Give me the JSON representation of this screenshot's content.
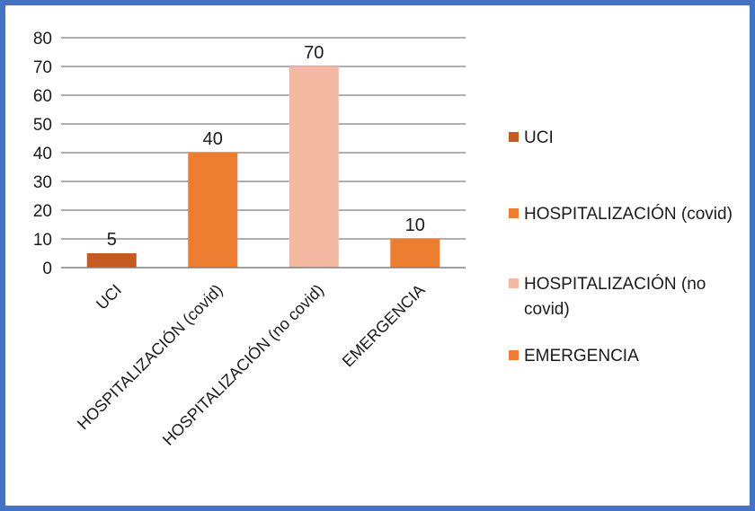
{
  "chart_data": {
    "type": "bar",
    "categories": [
      "UCI",
      "HOSPITALIZACIÓN (covid)",
      "HOSPITALIZACIÓN (no covid)",
      "EMERGENCIA"
    ],
    "values": [
      5,
      40,
      70,
      10
    ],
    "colors": [
      "#c55a23",
      "#ed7d31",
      "#f4b9a2",
      "#ed7d31"
    ],
    "data_labels": [
      "5",
      "40",
      "70",
      "10"
    ],
    "ylim": [
      0,
      80
    ],
    "y_ticks": [
      "0",
      "10",
      "20",
      "30",
      "40",
      "50",
      "60",
      "70",
      "80"
    ],
    "grid": true,
    "legend_position": "right",
    "legend": [
      {
        "label": "UCI",
        "color": "#c55a23"
      },
      {
        "label": "HOSPITALIZACIÓN (covid)",
        "color": "#ed7d31"
      },
      {
        "label": "HOSPITALIZACIÓN (no covid)",
        "color": "#f4b9a2"
      },
      {
        "label": "EMERGENCIA",
        "color": "#ed7d31"
      }
    ]
  },
  "frame_color": "#4472c4"
}
